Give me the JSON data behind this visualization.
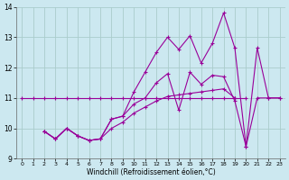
{
  "xlabel": "Windchill (Refroidissement éolien,°C)",
  "background_color": "#cce8f0",
  "grid_color": "#aacccc",
  "line_color": "#990099",
  "x_min": -0.5,
  "x_max": 23.5,
  "y_min": 9,
  "y_max": 14,
  "x_ticks": [
    0,
    1,
    2,
    3,
    4,
    5,
    6,
    7,
    8,
    9,
    10,
    11,
    12,
    13,
    14,
    15,
    16,
    17,
    18,
    19,
    20,
    21,
    22,
    23
  ],
  "y_ticks": [
    9,
    10,
    11,
    12,
    13,
    14
  ],
  "line1_x": [
    0,
    1,
    2,
    3,
    4,
    5,
    6,
    7,
    8,
    9,
    10,
    11,
    12,
    13,
    14,
    15,
    16,
    17,
    18,
    19,
    20
  ],
  "line1_y": [
    11,
    11,
    11,
    11,
    11,
    11,
    11,
    11,
    11,
    11,
    11,
    11,
    11,
    11,
    11,
    11,
    11,
    11,
    11,
    11,
    11
  ],
  "line2_x": [
    2,
    3,
    4,
    5,
    6,
    7,
    8,
    9,
    10,
    11,
    12,
    13,
    14,
    15,
    16,
    17,
    18,
    19,
    20,
    21,
    22,
    23
  ],
  "line2_y": [
    9.9,
    9.65,
    10.0,
    9.75,
    9.6,
    9.65,
    10.3,
    10.4,
    10.8,
    11.0,
    11.5,
    11.8,
    10.6,
    11.85,
    11.45,
    11.75,
    11.7,
    10.9,
    9.4,
    11.0,
    11.0,
    11.0
  ],
  "line3_x": [
    2,
    3,
    4,
    5,
    6,
    7,
    8,
    9,
    10,
    11,
    12,
    13,
    14,
    15,
    16,
    17,
    18,
    19,
    20,
    21,
    22,
    23
  ],
  "line3_y": [
    9.9,
    9.65,
    10.0,
    9.75,
    9.6,
    9.65,
    10.3,
    10.4,
    11.2,
    11.85,
    12.5,
    13.0,
    12.6,
    13.05,
    12.15,
    12.8,
    13.8,
    12.65,
    9.4,
    12.65,
    11.0,
    11.0
  ],
  "line4_x": [
    2,
    3,
    4,
    5,
    6,
    7,
    8,
    9,
    10,
    11,
    12,
    13,
    14,
    15,
    16,
    17,
    18,
    19
  ],
  "line4_y": [
    9.9,
    9.65,
    10.0,
    9.75,
    9.6,
    9.65,
    10.0,
    10.2,
    10.5,
    10.7,
    10.9,
    11.05,
    11.1,
    11.15,
    11.2,
    11.25,
    11.3,
    11.0
  ]
}
